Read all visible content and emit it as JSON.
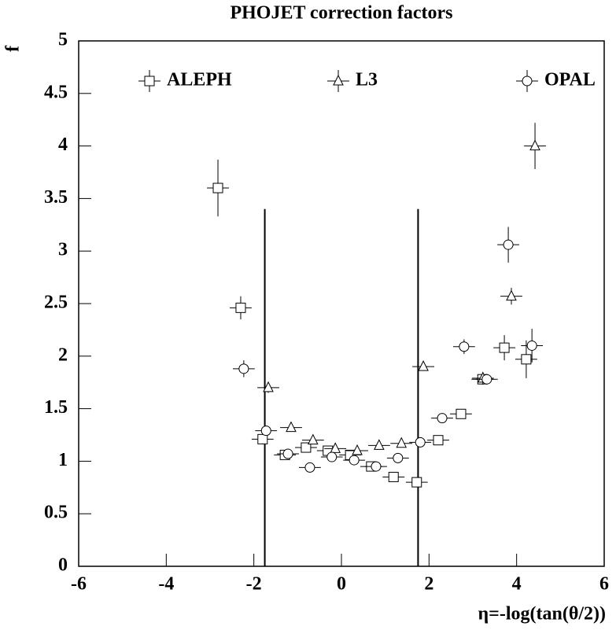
{
  "chart_data": {
    "type": "scatter",
    "title": "PHOJET correction factors",
    "x_label": "η=-log(tan(θ/2))",
    "y_label": "f",
    "xlim": [
      -6,
      6
    ],
    "xticks": [
      -6,
      -4,
      -2,
      0,
      2,
      4,
      6
    ],
    "ylim": [
      0,
      5
    ],
    "yticks": [
      0,
      0.5,
      1,
      1.5,
      2,
      2.5,
      3,
      3.5,
      4,
      4.5,
      5
    ],
    "legend": "top",
    "cut_lines": {
      "x": [
        -1.75,
        1.75
      ],
      "top": 3.4
    },
    "series": [
      {
        "name": "ALEPH",
        "marker": "square",
        "color": "#000000",
        "x": [
          -2.82,
          -2.3,
          -1.8,
          -1.29,
          -0.81,
          -0.31,
          0.2,
          0.68,
          1.19,
          1.72,
          2.21,
          2.73,
          3.22,
          3.72,
          4.22
        ],
        "values": [
          3.6,
          2.46,
          1.21,
          1.06,
          1.13,
          1.1,
          1.06,
          0.95,
          0.85,
          0.8,
          1.2,
          1.45,
          1.78,
          2.08,
          1.97
        ],
        "yerr": [
          0.27,
          0.11,
          0.05,
          0.03,
          0.03,
          0.03,
          0.03,
          0.03,
          0.03,
          0.03,
          0.03,
          0.03,
          0.05,
          0.12,
          0.18
        ],
        "xerr": [
          0.25,
          0.25,
          0.25,
          0.25,
          0.25,
          0.25,
          0.25,
          0.25,
          0.25,
          0.25,
          0.25,
          0.25,
          0.25,
          0.25,
          0.25
        ]
      },
      {
        "name": "L3",
        "marker": "triangle",
        "color": "#000000",
        "x": [
          -1.67,
          -1.15,
          -0.65,
          -0.14,
          0.36,
          0.86,
          1.37,
          1.87,
          3.23,
          3.88,
          4.42
        ],
        "values": [
          1.7,
          1.32,
          1.2,
          1.12,
          1.1,
          1.15,
          1.17,
          1.9,
          1.79,
          2.57,
          4.0
        ],
        "yerr": [
          0.05,
          0.03,
          0.03,
          0.03,
          0.03,
          0.03,
          0.03,
          0.04,
          0.06,
          0.08,
          0.22
        ],
        "xerr": [
          0.25,
          0.25,
          0.25,
          0.25,
          0.25,
          0.25,
          0.25,
          0.25,
          0.25,
          0.25,
          0.25
        ]
      },
      {
        "name": "OPAL",
        "marker": "circle",
        "color": "#000000",
        "x": [
          -2.23,
          -1.72,
          -1.22,
          -0.72,
          -0.22,
          0.29,
          0.79,
          1.29,
          1.8,
          2.3,
          2.8,
          3.32,
          3.81,
          4.35
        ],
        "values": [
          1.88,
          1.29,
          1.07,
          0.94,
          1.04,
          1.01,
          0.95,
          1.03,
          1.18,
          1.41,
          2.09,
          1.78,
          3.06,
          2.1
        ],
        "yerr": [
          0.08,
          0.03,
          0.03,
          0.03,
          0.03,
          0.03,
          0.03,
          0.03,
          0.03,
          0.03,
          0.07,
          0.05,
          0.17,
          0.16
        ],
        "xerr": [
          0.25,
          0.25,
          0.25,
          0.25,
          0.25,
          0.25,
          0.25,
          0.25,
          0.25,
          0.25,
          0.25,
          0.25,
          0.25,
          0.25
        ]
      }
    ]
  }
}
